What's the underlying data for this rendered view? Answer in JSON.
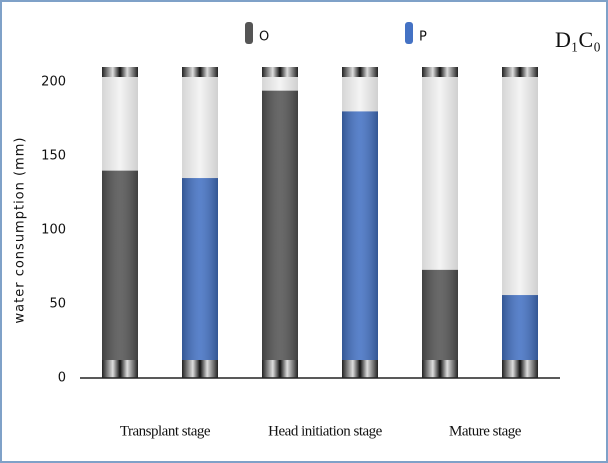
{
  "chart_data": {
    "type": "bar",
    "title": "D₁C₀",
    "y_label": "water consumption (mm)",
    "categories": [
      "Transplant stage",
      "Head initiation stage",
      "Mature stage"
    ],
    "series": [
      {
        "name": "O",
        "color": "#555555",
        "values": [
          140,
          194,
          73
        ]
      },
      {
        "name": "P",
        "color": "#4472c4",
        "values": [
          135,
          180,
          56
        ]
      }
    ],
    "ylim": [
      0,
      210
    ],
    "yticks": [
      0,
      50,
      100,
      150,
      200
    ]
  }
}
